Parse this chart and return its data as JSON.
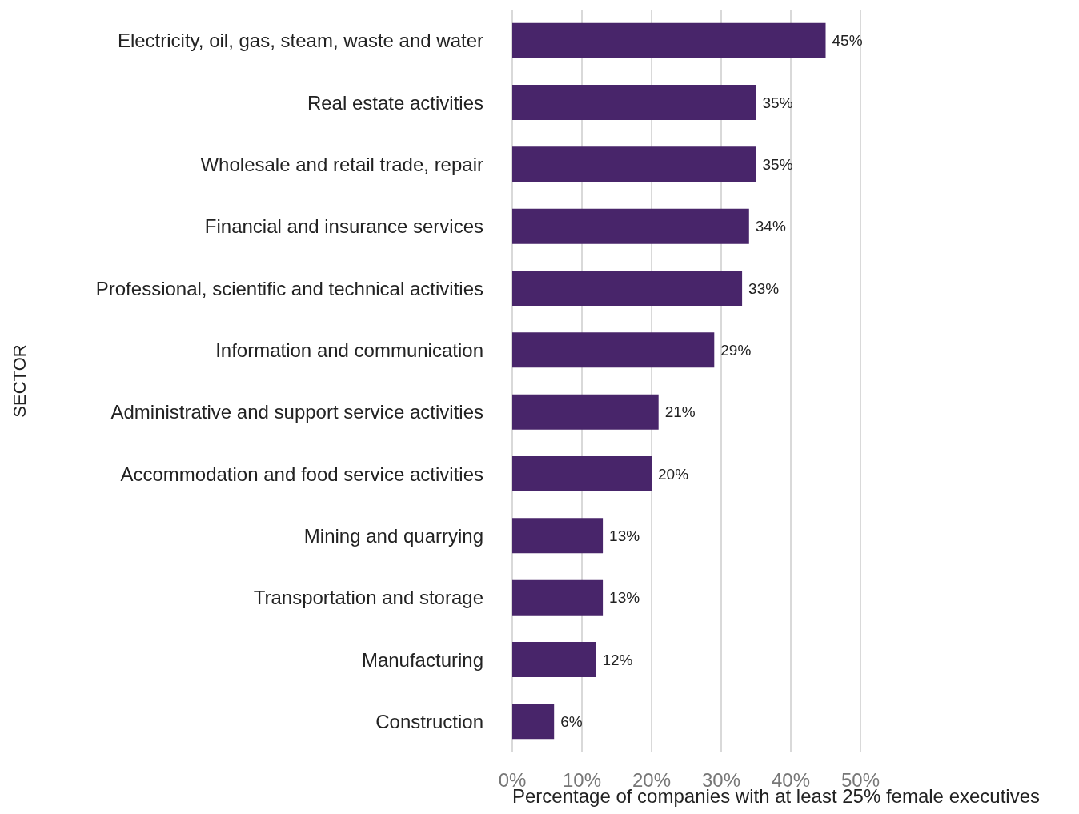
{
  "chart_data": {
    "type": "bar",
    "orientation": "horizontal",
    "xlabel": "Percentage of companies with at least 25% female executives",
    "ylabel": "SECTOR",
    "categories": [
      "Electricity, oil, gas, steam, waste and water",
      "Real estate activities",
      "Wholesale and retail trade, repair",
      "Financial and insurance services",
      "Professional, scientific and technical activities",
      "Information and communication",
      "Administrative and support service activities",
      "Accommodation and food service activities",
      "Mining and quarrying",
      "Transportation and storage",
      "Manufacturing",
      "Construction"
    ],
    "values": [
      45,
      35,
      35,
      34,
      33,
      29,
      21,
      20,
      13,
      13,
      12,
      6
    ],
    "value_labels": [
      "45%",
      "35%",
      "35%",
      "34%",
      "33%",
      "29%",
      "21%",
      "20%",
      "13%",
      "13%",
      "12%",
      "6%"
    ],
    "color": "#48256a",
    "xlim": [
      0,
      50
    ],
    "xticks": [
      {
        "value": 0,
        "label": "0%"
      },
      {
        "value": 10,
        "label": "10%"
      },
      {
        "value": 20,
        "label": "20%"
      },
      {
        "value": 30,
        "label": "30%"
      },
      {
        "value": 40,
        "label": "40%"
      },
      {
        "value": 50,
        "label": "50%"
      }
    ],
    "grid": "x"
  }
}
